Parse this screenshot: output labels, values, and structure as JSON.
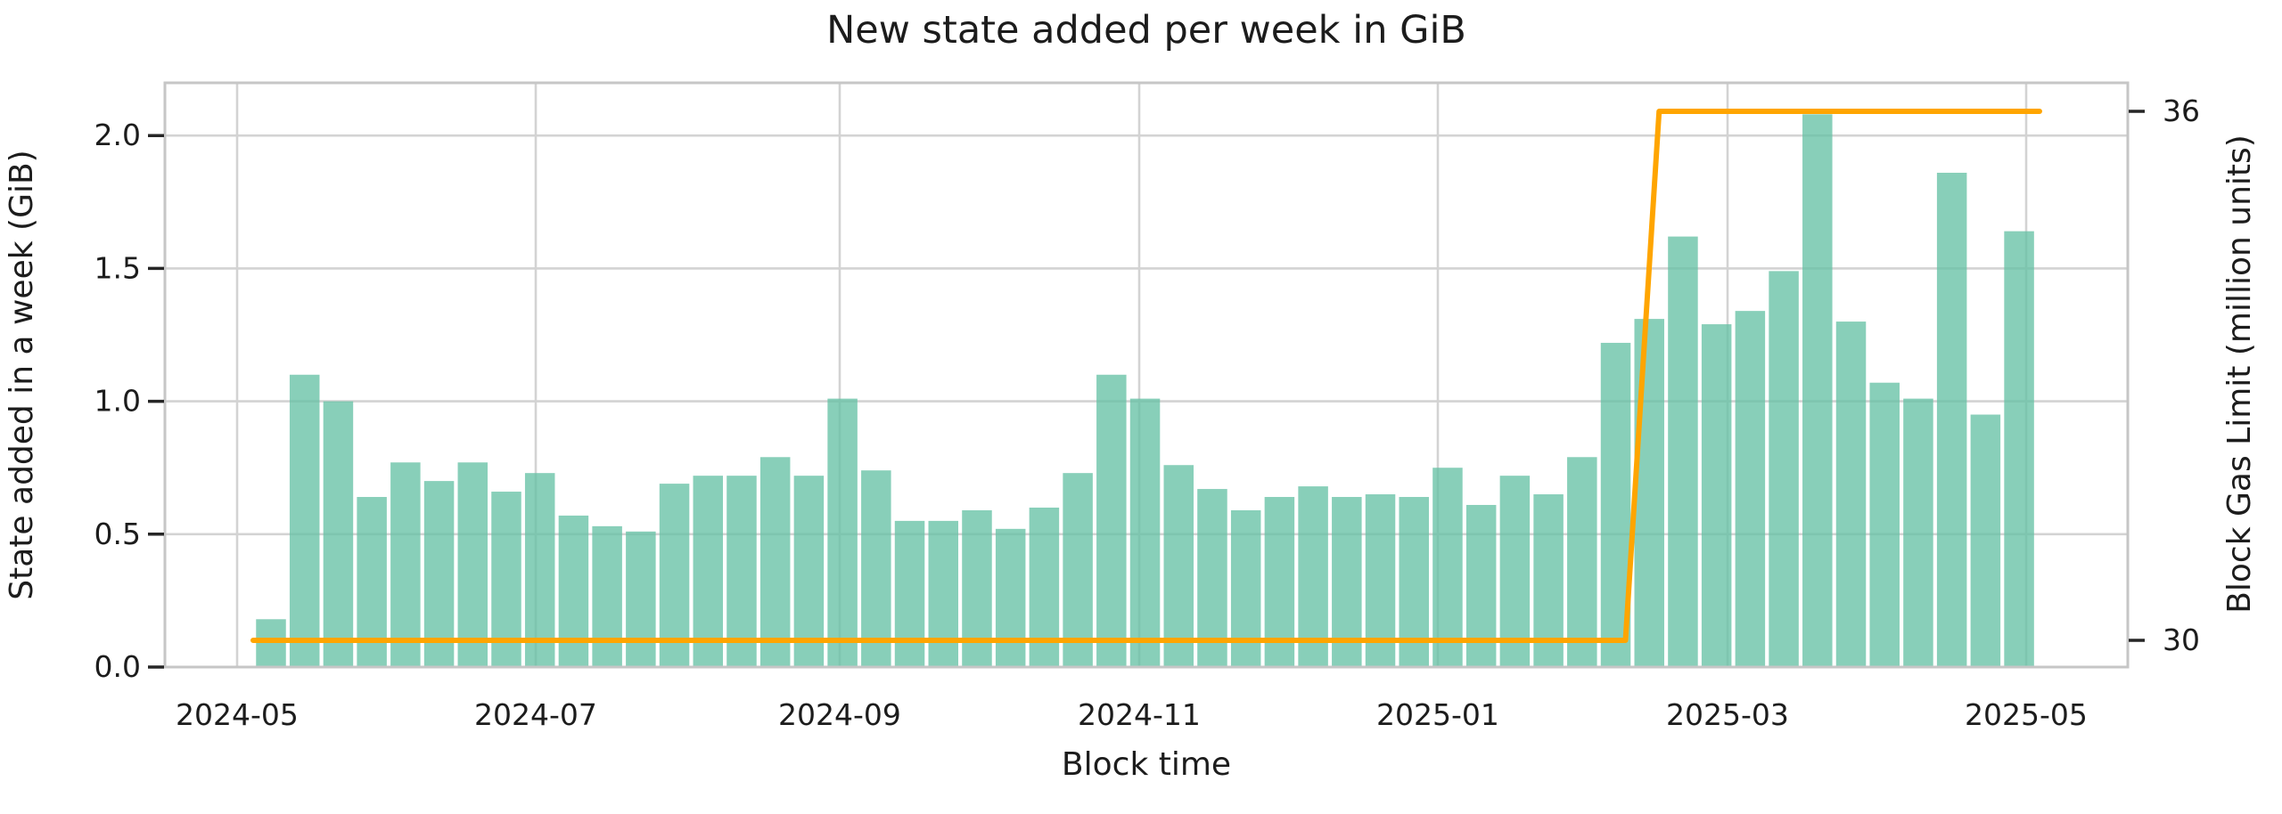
{
  "title": "New state added per week in GiB",
  "chart_data": {
    "type": "bar+line",
    "title": "New state added per week in GiB",
    "xlabel": "Block time",
    "ylabel_left": "State added in a week (GiB)",
    "ylabel_right": "Block Gas Limit (million units)",
    "x_tick_labels": [
      "2024-05",
      "2024-07",
      "2024-09",
      "2024-11",
      "2025-01",
      "2025-03",
      "2025-05"
    ],
    "y_tick_labels_left": [
      "0.0",
      "0.5",
      "1.0",
      "1.5",
      "2.0"
    ],
    "y_tick_values_left": [
      0.0,
      0.5,
      1.0,
      1.5,
      2.0
    ],
    "y_tick_labels_right": [
      "30",
      "36"
    ],
    "y_tick_values_right": [
      30,
      36
    ],
    "ylim_left": [
      0.0,
      2.2
    ],
    "ylim_right": [
      29.7,
      36.32
    ],
    "grid": true,
    "legend_position": "none",
    "bar_color": "#66c2a5",
    "bar_opacity": 0.78,
    "line_color": "#ffa500",
    "grid_color": "#d3d3d3",
    "spine_color": "#c6c6c6",
    "tick_mark_color": "#262626",
    "series": [
      {
        "name": "State added in a week (GiB)",
        "type": "bar",
        "week_start_dates": [
          "2024-05-06",
          "2024-05-13",
          "2024-05-20",
          "2024-05-27",
          "2024-06-03",
          "2024-06-10",
          "2024-06-17",
          "2024-06-24",
          "2024-07-01",
          "2024-07-08",
          "2024-07-15",
          "2024-07-22",
          "2024-07-29",
          "2024-08-05",
          "2024-08-12",
          "2024-08-19",
          "2024-08-26",
          "2024-09-02",
          "2024-09-09",
          "2024-09-16",
          "2024-09-23",
          "2024-09-30",
          "2024-10-07",
          "2024-10-14",
          "2024-10-21",
          "2024-10-28",
          "2024-11-04",
          "2024-11-11",
          "2024-11-18",
          "2024-11-25",
          "2024-12-02",
          "2024-12-09",
          "2024-12-16",
          "2024-12-23",
          "2024-12-30",
          "2025-01-06",
          "2025-01-13",
          "2025-01-20",
          "2025-01-27",
          "2025-02-03",
          "2025-02-10",
          "2025-02-17",
          "2025-02-24",
          "2025-03-03",
          "2025-03-10",
          "2025-03-17",
          "2025-03-24",
          "2025-03-31",
          "2025-04-07",
          "2025-04-14",
          "2025-04-21",
          "2025-04-28",
          "2025-05-05"
        ],
        "values": [
          0.18,
          1.1,
          1.0,
          0.64,
          0.77,
          0.7,
          0.77,
          0.66,
          0.73,
          0.57,
          0.53,
          0.51,
          0.69,
          0.72,
          0.72,
          0.79,
          0.72,
          1.01,
          0.74,
          0.55,
          0.55,
          0.59,
          0.52,
          0.6,
          0.73,
          1.1,
          1.01,
          0.76,
          0.67,
          0.59,
          0.64,
          0.68,
          0.64,
          0.65,
          0.64,
          0.75,
          0.61,
          0.72,
          0.65,
          0.79,
          1.22,
          1.31,
          1.62,
          1.29,
          1.34,
          1.49,
          2.08,
          1.3,
          1.07,
          1.01,
          1.86,
          0.95,
          1.64
        ]
      },
      {
        "name": "Block Gas Limit (million units)",
        "type": "step-line",
        "values_by_week": [
          30,
          30,
          30,
          30,
          30,
          30,
          30,
          30,
          30,
          30,
          30,
          30,
          30,
          30,
          30,
          30,
          30,
          30,
          30,
          30,
          30,
          30,
          30,
          30,
          30,
          30,
          30,
          30,
          30,
          30,
          30,
          30,
          30,
          30,
          30,
          30,
          30,
          30,
          30,
          30,
          30,
          36,
          36,
          36,
          36,
          36,
          36,
          36,
          36,
          36,
          36,
          36,
          36
        ]
      }
    ]
  }
}
